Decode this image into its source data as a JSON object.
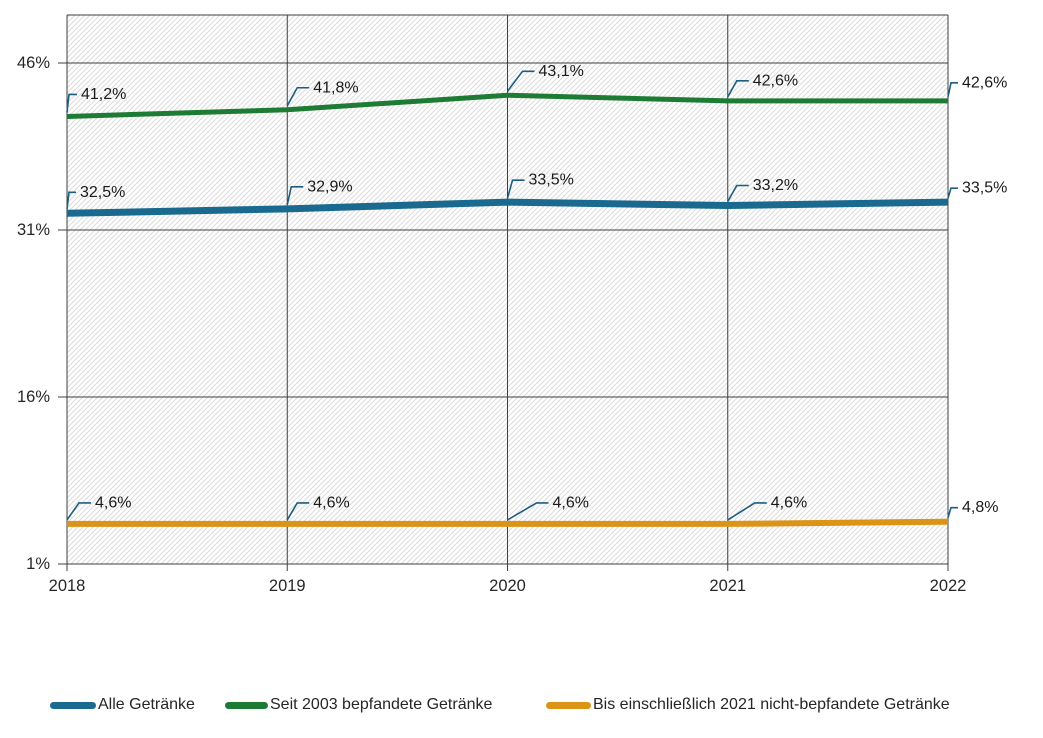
{
  "chart_data": {
    "type": "line",
    "title": "",
    "categories": [
      "2018",
      "2019",
      "2020",
      "2021",
      "2022"
    ],
    "series": [
      {
        "name": "Alle Getränke",
        "color": "#1A698E",
        "values": [
          32.5,
          32.9,
          33.5,
          33.2,
          33.5
        ],
        "point_labels": [
          "32,5%",
          "32,9%",
          "33,5%",
          "33,2%"
        ],
        "end_label": "33,5%"
      },
      {
        "name": "Seit 2003 bepfandete Getränke",
        "color": "#1E7B34",
        "values": [
          41.2,
          41.8,
          43.1,
          42.6,
          42.6
        ],
        "point_labels": [
          "41,2%",
          "41,8%",
          "43,1%",
          "42,6%"
        ],
        "end_label": "42,6%"
      },
      {
        "name": "Bis einschließlich 2021 nicht-bepfandete Getränke",
        "color": "#DB9417",
        "values": [
          4.6,
          4.6,
          4.6,
          4.6,
          4.8
        ],
        "point_labels": [
          "4,6%",
          "4,6%",
          "4,6%",
          "4,6%"
        ],
        "end_label": "4,8%"
      }
    ],
    "y_axis": {
      "tick_labels": [
        "46%",
        "31%",
        "16%",
        "1%"
      ],
      "tick_values": [
        46,
        31,
        16,
        1
      ],
      "range": [
        1,
        47.5
      ]
    },
    "x_axis": {
      "tick_labels": [
        "2018",
        "2019",
        "2020",
        "2021",
        "2022"
      ]
    },
    "legend": {
      "position": "bottom",
      "entries": [
        "Alle Getränke",
        "Seit 2003 bepfandete Getränke",
        "Bis einschließlich 2021 nicht-bepfandete Getränke"
      ]
    },
    "grid": true,
    "plot_background": "diagonal-hatch",
    "colors": {
      "hatch": "#DCDCDC",
      "grid": "#3F3F3F",
      "text": "#262626",
      "leader": "#1B5E80",
      "background": "#FFFFFF"
    }
  }
}
